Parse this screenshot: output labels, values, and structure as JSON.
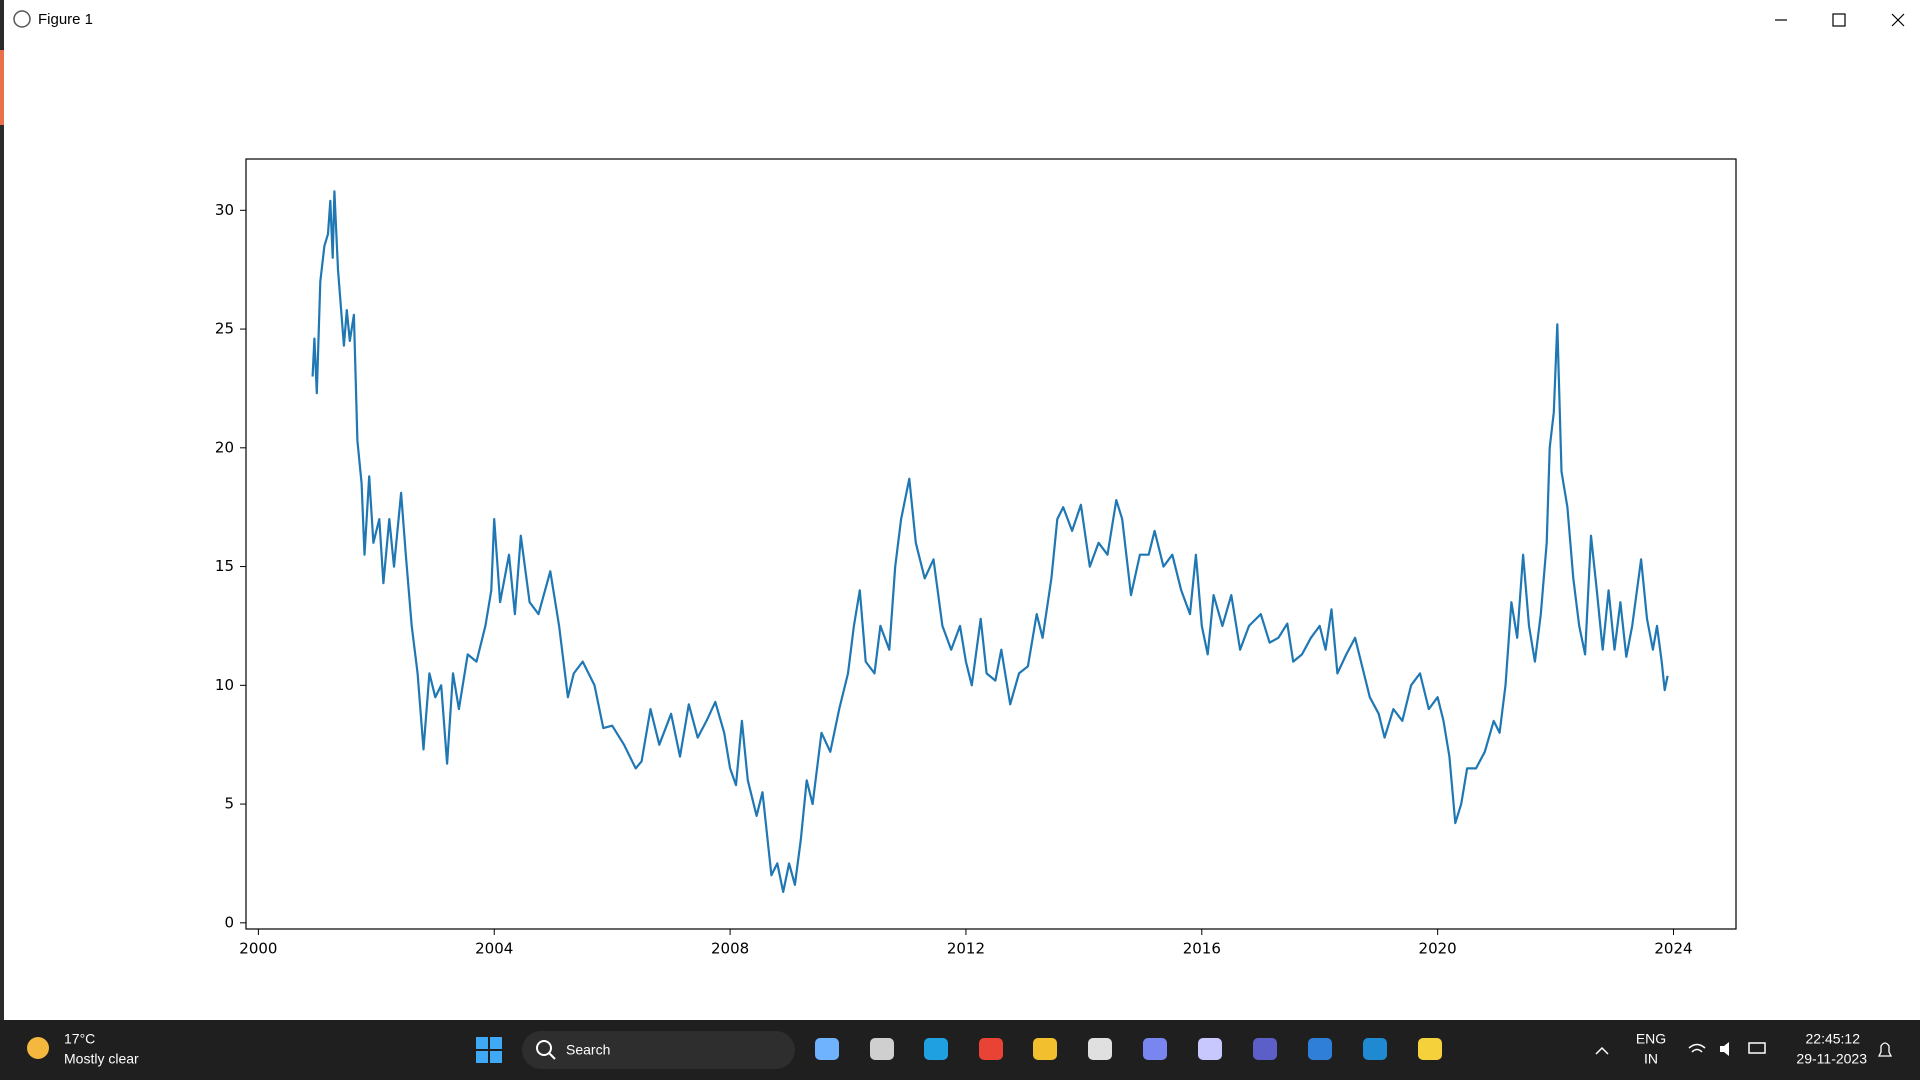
{
  "window": {
    "title": "Figure 1"
  },
  "chart_data": {
    "type": "line",
    "x": [
      2000.92,
      2000.95,
      2000.99,
      2001.05,
      2001.12,
      2001.18,
      2001.22,
      2001.26,
      2001.29,
      2001.35,
      2001.45,
      2001.5,
      2001.55,
      2001.62,
      2001.68,
      2001.75,
      2001.8,
      2001.88,
      2001.95,
      2002.05,
      2002.12,
      2002.22,
      2002.3,
      2002.42,
      2002.5,
      2002.6,
      2002.7,
      2002.8,
      2002.9,
      2003.0,
      2003.1,
      2003.2,
      2003.3,
      2003.4,
      2003.55,
      2003.7,
      2003.85,
      2003.95,
      2004.0,
      2004.1,
      2004.25,
      2004.35,
      2004.45,
      2004.6,
      2004.75,
      2004.95,
      2005.1,
      2005.25,
      2005.35,
      2005.5,
      2005.7,
      2005.85,
      2006.0,
      2006.2,
      2006.4,
      2006.5,
      2006.65,
      2006.8,
      2007.0,
      2007.15,
      2007.3,
      2007.45,
      2007.6,
      2007.75,
      2007.9,
      2008.0,
      2008.1,
      2008.2,
      2008.3,
      2008.45,
      2008.55,
      2008.7,
      2008.8,
      2008.9,
      2009.0,
      2009.1,
      2009.2,
      2009.3,
      2009.4,
      2009.55,
      2009.7,
      2009.85,
      2010.0,
      2010.1,
      2010.2,
      2010.3,
      2010.45,
      2010.55,
      2010.7,
      2010.8,
      2010.9,
      2011.04,
      2011.15,
      2011.3,
      2011.45,
      2011.6,
      2011.75,
      2011.9,
      2012.0,
      2012.1,
      2012.25,
      2012.35,
      2012.5,
      2012.6,
      2012.75,
      2012.9,
      2013.05,
      2013.2,
      2013.3,
      2013.45,
      2013.55,
      2013.65,
      2013.8,
      2013.95,
      2014.1,
      2014.25,
      2014.4,
      2014.55,
      2014.65,
      2014.8,
      2014.95,
      2015.1,
      2015.2,
      2015.35,
      2015.5,
      2015.65,
      2015.8,
      2015.9,
      2016.0,
      2016.1,
      2016.2,
      2016.35,
      2016.5,
      2016.65,
      2016.8,
      2017.0,
      2017.15,
      2017.3,
      2017.45,
      2017.55,
      2017.7,
      2017.85,
      2018.0,
      2018.1,
      2018.2,
      2018.3,
      2018.45,
      2018.6,
      2018.75,
      2018.85,
      2019.0,
      2019.1,
      2019.25,
      2019.4,
      2019.55,
      2019.7,
      2019.85,
      2020.0,
      2020.1,
      2020.2,
      2020.3,
      2020.4,
      2020.5,
      2020.65,
      2020.8,
      2020.95,
      2021.05,
      2021.15,
      2021.25,
      2021.35,
      2021.45,
      2021.55,
      2021.65,
      2021.75,
      2021.85,
      2021.9,
      2021.97,
      2022.03,
      2022.1,
      2022.2,
      2022.3,
      2022.4,
      2022.5,
      2022.6,
      2022.7,
      2022.8,
      2022.9,
      2023.0,
      2023.1,
      2023.2,
      2023.3,
      2023.45,
      2023.55,
      2023.65,
      2023.72,
      2023.8,
      2023.85,
      2023.9
    ],
    "series": [
      {
        "color": "#1f77b4",
        "values": [
          23.0,
          24.6,
          22.3,
          27.0,
          28.5,
          29.0,
          30.4,
          28.0,
          30.8,
          27.5,
          24.3,
          25.8,
          24.5,
          25.6,
          20.3,
          18.5,
          15.5,
          18.8,
          16.0,
          17.0,
          14.3,
          17.0,
          15.0,
          18.1,
          15.5,
          12.5,
          10.5,
          7.3,
          10.5,
          9.5,
          10.0,
          6.7,
          10.5,
          9.0,
          11.3,
          11.0,
          12.5,
          14.0,
          17.0,
          13.5,
          15.5,
          13.0,
          16.3,
          13.5,
          13.0,
          14.8,
          12.5,
          9.5,
          10.5,
          11.0,
          10.0,
          8.2,
          8.3,
          7.5,
          6.5,
          6.8,
          9.0,
          7.5,
          8.8,
          7.0,
          9.2,
          7.8,
          8.5,
          9.3,
          8.0,
          6.5,
          5.8,
          8.5,
          6.0,
          4.5,
          5.5,
          2.0,
          2.5,
          1.3,
          2.5,
          1.6,
          3.5,
          6.0,
          5.0,
          8.0,
          7.2,
          9.0,
          10.5,
          12.5,
          14.0,
          11.0,
          10.5,
          12.5,
          11.5,
          15.0,
          17.0,
          18.7,
          16.0,
          14.5,
          15.3,
          12.5,
          11.5,
          12.5,
          11.0,
          10.0,
          12.8,
          10.5,
          10.2,
          11.5,
          9.2,
          10.5,
          10.8,
          13.0,
          12.0,
          14.5,
          17.0,
          17.5,
          16.5,
          17.6,
          15.0,
          16.0,
          15.5,
          17.8,
          17.0,
          13.8,
          15.5,
          15.5,
          16.5,
          15.0,
          15.5,
          14.0,
          13.0,
          15.5,
          12.5,
          11.3,
          13.8,
          12.5,
          13.8,
          11.5,
          12.5,
          13.0,
          11.8,
          12.0,
          12.6,
          11.0,
          11.3,
          12.0,
          12.5,
          11.5,
          13.2,
          10.5,
          11.3,
          12.0,
          10.5,
          9.5,
          8.8,
          7.8,
          9.0,
          8.5,
          10.0,
          10.5,
          9.0,
          9.5,
          8.5,
          7.0,
          4.2,
          5.0,
          6.5,
          6.5,
          7.2,
          8.5,
          8.0,
          10.0,
          13.5,
          12.0,
          15.5,
          12.5,
          11.0,
          13.0,
          16.0,
          20.0,
          21.5,
          25.2,
          19.0,
          17.5,
          14.5,
          12.5,
          11.3,
          16.3,
          14.0,
          11.5,
          14.0,
          11.5,
          13.5,
          11.2,
          12.5,
          15.3,
          12.8,
          11.5,
          12.5,
          11.0,
          9.8,
          10.4
        ]
      }
    ],
    "xlim": [
      1999.79,
      2025.06
    ],
    "ylim": [
      -0.26,
      32.16
    ],
    "xticks": [
      2000,
      2004,
      2008,
      2012,
      2016,
      2020,
      2024
    ],
    "yticks": [
      0,
      5,
      10,
      15,
      20,
      25,
      30
    ],
    "grid": false
  },
  "taskbar": {
    "temperature": "17°C",
    "condition": "Mostly clear",
    "search": "Search",
    "language": "ENG",
    "region": "IN",
    "time": "22:45:12",
    "date": "29-11-2023"
  }
}
